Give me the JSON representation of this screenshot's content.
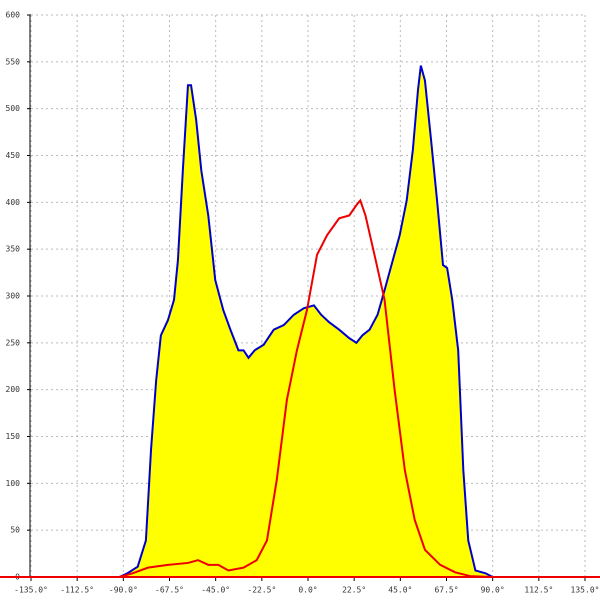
{
  "chart_data": {
    "type": "area",
    "xlim": [
      -135,
      135
    ],
    "ylim": [
      0,
      600
    ],
    "xticks": [
      {
        "value": -135,
        "label": "-135.0°"
      },
      {
        "value": -112.5,
        "label": "-112.5°"
      },
      {
        "value": -90,
        "label": "-90.0°"
      },
      {
        "value": -67.5,
        "label": "-67.5°"
      },
      {
        "value": -45,
        "label": "-45.0°"
      },
      {
        "value": -22.5,
        "label": "-22.5°"
      },
      {
        "value": 0,
        "label": "0.0°"
      },
      {
        "value": 22.5,
        "label": "22.5°"
      },
      {
        "value": 45,
        "label": "45.0°"
      },
      {
        "value": 67.5,
        "label": "67.5°"
      },
      {
        "value": 90,
        "label": "90.0°"
      },
      {
        "value": 112.5,
        "label": "112.5°"
      },
      {
        "value": 135,
        "label": "135.0°"
      }
    ],
    "yticks": [
      0,
      50,
      100,
      150,
      200,
      250,
      300,
      350,
      400,
      450,
      500,
      550,
      600
    ],
    "grid": true,
    "series": [
      {
        "color": "#0000cc",
        "fill": "#ffff00",
        "x": [
          -91.9,
          -88,
          -83,
          -79,
          -76.5,
          -74,
          -71.7,
          -68.3,
          -65.3,
          -63.4,
          -61,
          -58.5,
          -57,
          -54.5,
          -52,
          -48.6,
          -45.2,
          -41.3,
          -37.8,
          -33.9,
          -31.4,
          -29,
          -26,
          -21.6,
          -16.7,
          -11.8,
          -6.9,
          -2,
          2.9,
          6.4,
          10.3,
          15.2,
          20.1,
          23.6,
          26.5,
          30,
          33.9,
          37.3,
          41.3,
          44.7,
          48.1,
          51.1,
          53.6,
          55,
          57,
          60,
          62.9,
          65.8,
          67.8,
          70.3,
          73.2,
          75.7,
          78.1,
          81.6,
          86.5,
          90
        ],
        "values": [
          0,
          4,
          11,
          39,
          136,
          210,
          258,
          274,
          296,
          338,
          434,
          525,
          525,
          488,
          434,
          386,
          317,
          285,
          264,
          242,
          242,
          234,
          242,
          248,
          264,
          269,
          280,
          287,
          290,
          280,
          272,
          264,
          255,
          250,
          258,
          264,
          280,
          306,
          338,
          365,
          402,
          456,
          520,
          546,
          530,
          466,
          402,
          333,
          330,
          296,
          242,
          114,
          39,
          7,
          4,
          0
        ]
      },
      {
        "color": "#ee0000",
        "x": [
          -92,
          -85.5,
          -78,
          -68.3,
          -58.5,
          -53.6,
          -48.6,
          -43.7,
          -38.8,
          -31.4,
          -25,
          -20,
          -15.2,
          -10.3,
          -5.4,
          -0.5,
          4.4,
          9.3,
          15.2,
          20.1,
          23.6,
          25.5,
          28,
          32.4,
          37.3,
          42.2,
          47.2,
          52,
          57,
          64.4,
          71.7,
          79,
          90
        ],
        "values": [
          0,
          4,
          10,
          13,
          15,
          18,
          13,
          13,
          7,
          10,
          18,
          39,
          104,
          189,
          242,
          285,
          344,
          365,
          383,
          386,
          397,
          402,
          386,
          344,
          296,
          200,
          114,
          61,
          29,
          13,
          5,
          1,
          0
        ]
      }
    ]
  }
}
